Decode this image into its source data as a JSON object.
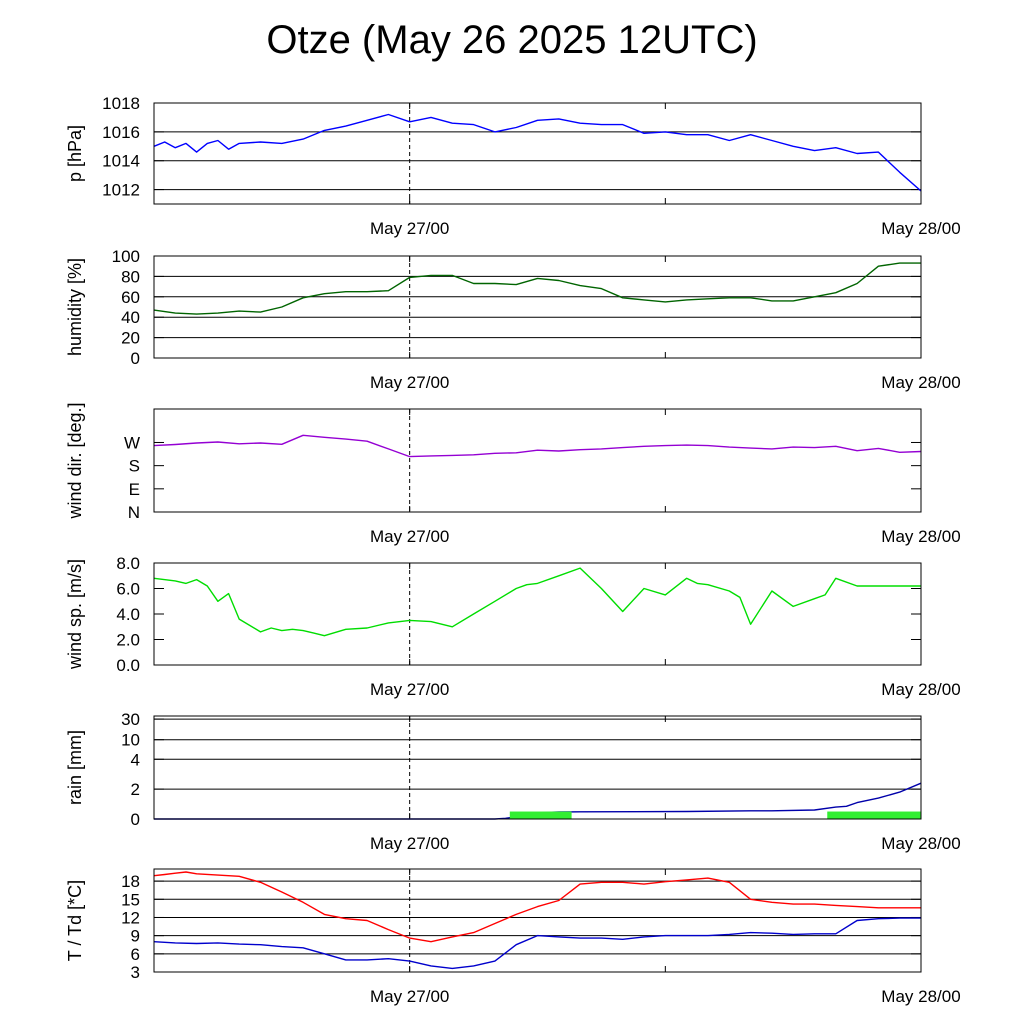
{
  "title": "Otze (May 26 2025 12UTC)",
  "time_axis": {
    "tick_labels": [
      "May 27/00",
      "May 28/00"
    ],
    "start": "2025-05-26T12:00Z",
    "end": "2025-05-28T00:00Z",
    "marker": "2025-05-27T00:00Z"
  },
  "chart_data": [
    {
      "type": "line",
      "ylabel": "p [hPa]",
      "ylim": [
        1011,
        1018
      ],
      "yticks": [
        1012,
        1014,
        1016,
        1018
      ],
      "grid": true,
      "series": [
        {
          "color": "#0000ff",
          "x_hours": [
            0,
            0.5,
            1,
            1.5,
            2,
            2.5,
            3,
            3.5,
            4,
            5,
            6,
            7,
            8,
            9,
            10,
            11,
            12,
            13,
            14,
            15,
            16,
            17,
            18,
            19,
            20,
            21,
            22,
            23,
            24,
            25,
            26,
            27,
            28,
            29,
            30,
            31,
            32,
            33,
            34,
            35,
            36
          ],
          "values": [
            1015.0,
            1015.3,
            1014.9,
            1015.2,
            1014.6,
            1015.2,
            1015.4,
            1014.8,
            1015.2,
            1015.3,
            1015.2,
            1015.5,
            1016.1,
            1016.4,
            1016.8,
            1017.2,
            1016.7,
            1017.0,
            1016.6,
            1016.5,
            1016.0,
            1016.3,
            1016.8,
            1016.9,
            1016.6,
            1016.5,
            1016.5,
            1015.9,
            1016.0,
            1015.8,
            1015.8,
            1015.4,
            1015.8,
            1015.4,
            1015.0,
            1014.7,
            1014.9,
            1014.5,
            1014.6,
            1013.2,
            1011.9
          ]
        }
      ]
    },
    {
      "type": "line",
      "ylabel": "humidity [%]",
      "ylim": [
        0,
        100
      ],
      "yticks": [
        0,
        20,
        40,
        60,
        80,
        100
      ],
      "grid": true,
      "series": [
        {
          "color": "#006400",
          "x_hours": [
            0,
            1,
            2,
            3,
            4,
            5,
            6,
            7,
            8,
            9,
            10,
            11,
            12,
            13,
            14,
            15,
            16,
            17,
            18,
            19,
            20,
            21,
            22,
            23,
            24,
            25,
            26,
            27,
            28,
            29,
            30,
            31,
            32,
            33,
            34,
            35,
            36
          ],
          "values": [
            47,
            44,
            43,
            44,
            46,
            45,
            50,
            59,
            63,
            65,
            65,
            66,
            79,
            81,
            81,
            73,
            73,
            72,
            78,
            76,
            71,
            68,
            59,
            57,
            55,
            57,
            58,
            59,
            59,
            56,
            56,
            60,
            64,
            73,
            90,
            93,
            93
          ]
        }
      ]
    },
    {
      "type": "line",
      "ylabel": "wind dir. [deg.]",
      "ylim": [
        0,
        400
      ],
      "yticks": [
        0,
        90,
        180,
        270
      ],
      "ytick_labels": [
        "N",
        "E",
        "S",
        "W"
      ],
      "grid": false,
      "series": [
        {
          "color": "#9400d3",
          "x_hours": [
            0,
            1,
            2,
            3,
            4,
            5,
            6,
            7,
            8,
            9,
            10,
            11,
            12,
            13,
            14,
            15,
            16,
            17,
            18,
            19,
            20,
            21,
            22,
            23,
            24,
            25,
            26,
            27,
            28,
            29,
            30,
            31,
            32,
            33,
            34,
            35,
            36
          ],
          "values": [
            258,
            262,
            268,
            272,
            265,
            268,
            263,
            298,
            290,
            283,
            275,
            245,
            215,
            218,
            220,
            222,
            228,
            230,
            240,
            237,
            242,
            245,
            250,
            255,
            258,
            260,
            258,
            252,
            248,
            245,
            252,
            250,
            255,
            238,
            247,
            232,
            235
          ]
        }
      ]
    },
    {
      "type": "line",
      "ylabel": "wind sp. [m/s]",
      "ylim": [
        0,
        8
      ],
      "yticks": [
        0.0,
        2.0,
        4.0,
        6.0,
        8.0
      ],
      "grid": false,
      "series": [
        {
          "color": "#00dd00",
          "x_hours": [
            0,
            1,
            1.5,
            2,
            2.5,
            3,
            3.5,
            4,
            5,
            5.5,
            6,
            6.5,
            7,
            7.5,
            8,
            9,
            10,
            11,
            12,
            13,
            14,
            15,
            16,
            17,
            17.5,
            18,
            19,
            20,
            21,
            22,
            23,
            24,
            25,
            25.5,
            26,
            27,
            27.5,
            28,
            29,
            30,
            31,
            31.5,
            32,
            33,
            34,
            34.5,
            35,
            36
          ],
          "values": [
            6.8,
            6.6,
            6.4,
            6.7,
            6.2,
            5.0,
            5.6,
            3.6,
            2.6,
            2.9,
            2.7,
            2.8,
            2.7,
            2.5,
            2.3,
            2.8,
            2.9,
            3.3,
            3.5,
            3.4,
            3.0,
            4.0,
            5.0,
            6.0,
            6.3,
            6.4,
            7.0,
            7.6,
            6.0,
            4.2,
            6.0,
            5.5,
            6.8,
            6.4,
            6.3,
            5.8,
            5.3,
            3.2,
            5.8,
            4.6,
            5.2,
            5.5,
            6.8,
            6.2,
            6.2,
            6.2,
            6.2,
            6.2
          ]
        }
      ]
    },
    {
      "type": "line",
      "ylabel": "rain [mm]",
      "ylim": [
        0,
        30
      ],
      "yticks": [
        0,
        2,
        4,
        10,
        30
      ],
      "grid": true,
      "series": [
        {
          "color": "#0000aa",
          "x_hours": [
            0,
            16,
            16.5,
            17,
            17.5,
            18,
            18.5,
            19,
            20,
            25,
            28,
            29,
            31,
            32,
            32.5,
            33,
            34,
            35,
            36
          ],
          "values": [
            0,
            0,
            0.05,
            0.15,
            0.3,
            0.4,
            0.45,
            0.47,
            0.48,
            0.5,
            0.55,
            0.55,
            0.6,
            0.8,
            0.85,
            1.1,
            1.4,
            1.8,
            2.4
          ]
        },
        {
          "color": "#33ee33",
          "type": "bar",
          "bars": [
            {
              "x_start_hours": 16.7,
              "x_end_hours": 19.6,
              "value": 0.5
            },
            {
              "x_start_hours": 31.6,
              "x_end_hours": 36.0,
              "value": 0.5
            }
          ]
        }
      ]
    },
    {
      "type": "line",
      "ylabel": "T / Td [*C]",
      "ylim": [
        3,
        20
      ],
      "yticks": [
        3,
        6,
        9,
        12,
        15,
        18
      ],
      "grid": true,
      "series": [
        {
          "color": "#ff0000",
          "x_hours": [
            0,
            0.5,
            1,
            1.5,
            2,
            3,
            4,
            5,
            6,
            7,
            8,
            9,
            10,
            11,
            12,
            13,
            14,
            15,
            16,
            17,
            18,
            19,
            20,
            21,
            22,
            23,
            24,
            25,
            26,
            27,
            28,
            29,
            30,
            31,
            32,
            33,
            34,
            35,
            36
          ],
          "values": [
            18.9,
            19.1,
            19.3,
            19.5,
            19.2,
            19.0,
            18.8,
            17.8,
            16.2,
            14.5,
            12.5,
            11.8,
            11.5,
            10.0,
            8.6,
            8.0,
            8.8,
            9.5,
            11.0,
            12.5,
            13.8,
            14.8,
            17.5,
            17.8,
            17.8,
            17.5,
            17.9,
            18.2,
            18.5,
            17.8,
            15.0,
            14.5,
            14.2,
            14.2,
            14.0,
            13.8,
            13.6,
            13.6,
            13.6
          ]
        },
        {
          "color": "#0000cc",
          "x_hours": [
            0,
            1,
            2,
            3,
            4,
            5,
            6,
            7,
            8,
            9,
            10,
            11,
            12,
            13,
            14,
            15,
            16,
            17,
            18,
            19,
            20,
            21,
            22,
            23,
            24,
            25,
            26,
            27,
            28,
            29,
            30,
            31,
            32,
            33,
            34,
            35,
            36
          ],
          "values": [
            8.0,
            7.8,
            7.7,
            7.8,
            7.6,
            7.5,
            7.2,
            7.0,
            6.0,
            5.0,
            5.0,
            5.2,
            4.8,
            4.0,
            3.6,
            4.0,
            4.8,
            7.5,
            9.0,
            8.8,
            8.6,
            8.6,
            8.4,
            8.8,
            9.0,
            9.0,
            9.0,
            9.2,
            9.5,
            9.4,
            9.2,
            9.3,
            9.3,
            11.5,
            11.8,
            11.9,
            11.9
          ]
        }
      ]
    }
  ]
}
